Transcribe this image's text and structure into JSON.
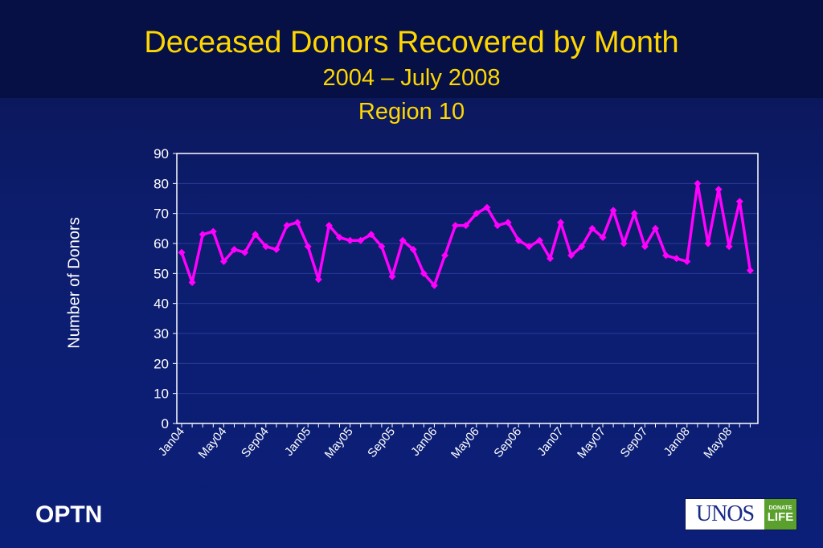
{
  "slide": {
    "title": "Deceased Donors Recovered by Month",
    "subtitle": "2004 – July 2008",
    "region": "Region 10",
    "footer_left": "OPTN",
    "logo_text": "UNOS",
    "logo_badge_top": "DONATE",
    "logo_badge_bottom": "LIFE"
  },
  "colors": {
    "background": "#0b1f78",
    "title": "#ffd700",
    "series": "#ff00ff",
    "axis_text": "#ffffff"
  },
  "chart_data": {
    "type": "line",
    "title": "Deceased Donors Recovered by Month",
    "xlabel": "",
    "ylabel": "Number of Donors",
    "ylim": [
      0,
      90
    ],
    "yticks": [
      0,
      10,
      20,
      30,
      40,
      50,
      60,
      70,
      80,
      90
    ],
    "grid": true,
    "x_tick_labels": [
      "Jan04",
      "May04",
      "Sep04",
      "Jan05",
      "May05",
      "Sep05",
      "Jan06",
      "May06",
      "Sep06",
      "Jan07",
      "May07",
      "Sep07",
      "Jan08",
      "May08"
    ],
    "x_tick_every": 4,
    "categories": [
      "Jan04",
      "Feb04",
      "Mar04",
      "Apr04",
      "May04",
      "Jun04",
      "Jul04",
      "Aug04",
      "Sep04",
      "Oct04",
      "Nov04",
      "Dec04",
      "Jan05",
      "Feb05",
      "Mar05",
      "Apr05",
      "May05",
      "Jun05",
      "Jul05",
      "Aug05",
      "Sep05",
      "Oct05",
      "Nov05",
      "Dec05",
      "Jan06",
      "Feb06",
      "Mar06",
      "Apr06",
      "May06",
      "Jun06",
      "Jul06",
      "Aug06",
      "Sep06",
      "Oct06",
      "Nov06",
      "Dec06",
      "Jan07",
      "Feb07",
      "Mar07",
      "Apr07",
      "May07",
      "Jun07",
      "Jul07",
      "Aug07",
      "Sep07",
      "Oct07",
      "Nov07",
      "Dec07",
      "Jan08",
      "Feb08",
      "Mar08",
      "Apr08",
      "May08",
      "Jun08",
      "Jul08"
    ],
    "series": [
      {
        "values": [
          57,
          47,
          63,
          64,
          54,
          58,
          57,
          63,
          59,
          58,
          66,
          67,
          59,
          48,
          66,
          62,
          61,
          61,
          63,
          59,
          49,
          61,
          58,
          50,
          46,
          56,
          66,
          66,
          70,
          72,
          66,
          67,
          61,
          59,
          61,
          55,
          67,
          56,
          59,
          65,
          62,
          71,
          60,
          70,
          59,
          65,
          56,
          55,
          54,
          80,
          60,
          78,
          59,
          74,
          51
        ]
      }
    ]
  }
}
